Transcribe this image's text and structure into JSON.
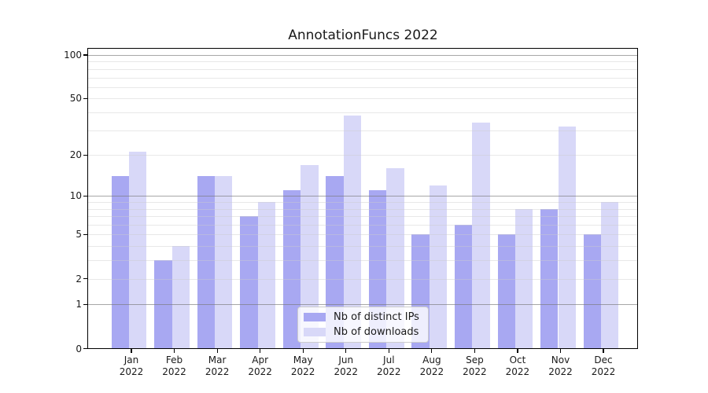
{
  "chart_data": {
    "type": "bar",
    "title": "AnnotationFuncs 2022",
    "categories": [
      "Jan",
      "Feb",
      "Mar",
      "Apr",
      "May",
      "Jun",
      "Jul",
      "Aug",
      "Sep",
      "Oct",
      "Nov",
      "Dec"
    ],
    "category_year": "2022",
    "series": [
      {
        "name": "Nb of distinct IPs",
        "color": "#a8a8f2",
        "values": [
          14,
          3,
          14,
          7,
          11,
          14,
          11,
          5,
          6,
          5,
          8,
          5
        ]
      },
      {
        "name": "Nb of downloads",
        "color": "#d8d8f8",
        "values": [
          21,
          4,
          14,
          9,
          17,
          38,
          16,
          12,
          34,
          8,
          32,
          9
        ]
      }
    ],
    "yscale": "log10(value+1)",
    "ylim": [
      0,
      110
    ],
    "ytick_labels": [
      0,
      1,
      2,
      5,
      10,
      20,
      50,
      100
    ],
    "grid_major": [
      1,
      10,
      100
    ],
    "grid_minor": [
      2,
      3,
      4,
      5,
      6,
      7,
      8,
      9,
      20,
      30,
      40,
      50,
      60,
      70,
      80,
      90
    ],
    "grid": "on",
    "legend_position": "lower center"
  }
}
